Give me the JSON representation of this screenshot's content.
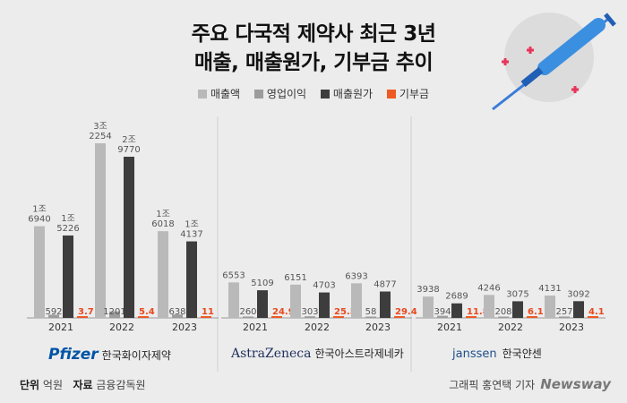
{
  "title_line1": "주요 다국적 제약사 최근 3년",
  "title_line2": "매출, 매출원가, 기부금 추이",
  "legend": [
    {
      "label": "매출액",
      "color": "#b9b9b9"
    },
    {
      "label": "영업이익",
      "color": "#9c9c9c"
    },
    {
      "label": "매출원가",
      "color": "#3d3d3d"
    },
    {
      "label": "기부금",
      "color": "#ee5a24"
    }
  ],
  "companies": [
    {
      "brand": "Pfizer",
      "korean": "한국화이자제약"
    },
    {
      "brand": "AstraZeneca",
      "korean": "한국아스트라제네카"
    },
    {
      "brand": "janssen",
      "korean": "한국얀센"
    }
  ],
  "footer": {
    "unit_label": "단위",
    "unit_value": "억원",
    "source_label": "자료",
    "source_value": "금융감독원",
    "credit": "그래픽 홍연택 기자",
    "publisher": "Newsway"
  },
  "chart_data": {
    "type": "bar",
    "categories": [
      "2021",
      "2022",
      "2023"
    ],
    "series_names": [
      "매출액",
      "영업이익",
      "매출원가",
      "기부금"
    ],
    "groups": [
      {
        "company": "Pfizer",
        "values": [
          [
            16940,
            592,
            15226,
            3.7
          ],
          [
            32254,
            1201,
            29770,
            5.4
          ],
          [
            16018,
            638,
            14137,
            11
          ]
        ],
        "labels": [
          [
            "1조\n6940",
            "592",
            "1조\n5226",
            "3.7"
          ],
          [
            "3조\n2254",
            "1201",
            "2조\n9770",
            "5.4"
          ],
          [
            "1조\n6018",
            "638",
            "1조\n4137",
            "11"
          ]
        ]
      },
      {
        "company": "AstraZeneca",
        "values": [
          [
            6553,
            260,
            5109,
            24.9
          ],
          [
            6151,
            303,
            4703,
            25.5
          ],
          [
            6393,
            58,
            4877,
            29.4
          ]
        ],
        "labels": [
          [
            "6553",
            "260",
            "5109",
            "24.9"
          ],
          [
            "6151",
            "303",
            "4703",
            "25.5"
          ],
          [
            "6393",
            "58",
            "4877",
            "29.4"
          ]
        ]
      },
      {
        "company": "Janssen",
        "values": [
          [
            3938,
            394,
            2689,
            11.8
          ],
          [
            4246,
            208,
            3075,
            6.1
          ],
          [
            4131,
            257,
            3092,
            4.1
          ]
        ],
        "labels": [
          [
            "3938",
            "394",
            "2689",
            "11.8"
          ],
          [
            "4246",
            "208",
            "3075",
            "6.1"
          ],
          [
            "4131",
            "257",
            "3092",
            "4.1"
          ]
        ]
      }
    ]
  }
}
